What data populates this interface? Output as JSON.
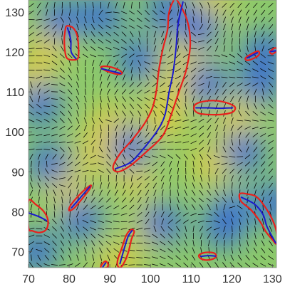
{
  "chart_data": {
    "type": "heatmap",
    "title": "",
    "xlabel": "",
    "ylabel": "",
    "xlim": [
      70,
      131
    ],
    "ylim": [
      66,
      133
    ],
    "x_ticks": [
      70,
      80,
      90,
      100,
      110,
      120,
      130
    ],
    "y_ticks": [
      70,
      80,
      90,
      100,
      110,
      120,
      130
    ],
    "colormap": [
      "#2a2fd0",
      "#3d7fd8",
      "#4cb8b0",
      "#8cc96a",
      "#c8d455",
      "#e6cc3a"
    ],
    "colors": {
      "red_contour": "#e8201c",
      "blue_skeleton": "#1a1acc",
      "director_glyph": "#000000"
    },
    "overlays": "director field line segments; red closed contours; blue centre lines",
    "low_value_spots": [
      [
        73,
        107
      ],
      [
        72,
        70
      ],
      [
        78,
        128
      ],
      [
        88,
        129
      ],
      [
        95,
        96
      ],
      [
        97,
        118
      ],
      [
        112,
        126
      ],
      [
        114,
        112
      ],
      [
        123,
        95
      ],
      [
        127,
        112
      ],
      [
        120,
        80
      ],
      [
        118,
        76
      ],
      [
        83,
        78
      ],
      [
        103,
        77
      ],
      [
        131,
        82
      ],
      [
        75,
        92
      ],
      [
        104,
        130
      ],
      [
        128,
        120
      ]
    ],
    "high_value_spots": [
      [
        96,
        89
      ],
      [
        103,
        103
      ],
      [
        106,
        110
      ],
      [
        109,
        120
      ],
      [
        100,
        76
      ],
      [
        79,
        86
      ],
      [
        115,
        92
      ],
      [
        90,
        102
      ],
      [
        87,
        95
      ],
      [
        71,
        113
      ],
      [
        121,
        103
      ],
      [
        92,
        67
      ],
      [
        115,
        132
      ],
      [
        75,
        122
      ]
    ],
    "regions": [
      {
        "outline": [
          [
            106.5,
            133
          ],
          [
            109,
            128
          ],
          [
            109.8,
            122
          ],
          [
            108.8,
            115.5
          ],
          [
            107,
            110
          ],
          [
            105,
            104
          ],
          [
            103,
            99
          ],
          [
            99,
            95
          ],
          [
            95,
            91.5
          ],
          [
            92,
            90
          ],
          [
            90.8,
            91.2
          ],
          [
            92.5,
            94.5
          ],
          [
            95.5,
            98
          ],
          [
            98.5,
            102
          ],
          [
            100.5,
            106
          ],
          [
            101.5,
            110.5
          ],
          [
            102,
            115
          ],
          [
            103,
            120.5
          ],
          [
            104.2,
            125.5
          ],
          [
            104.5,
            129.5
          ],
          [
            105.5,
            132.5
          ]
        ],
        "centerline": [
          [
            108,
            132.5
          ],
          [
            106.8,
            127
          ],
          [
            106.3,
            121
          ],
          [
            105.6,
            115
          ],
          [
            104.6,
            110
          ],
          [
            103.5,
            104
          ],
          [
            101.5,
            100
          ],
          [
            97.8,
            95.2
          ],
          [
            95,
            92.3
          ],
          [
            91.5,
            90.8
          ]
        ]
      },
      {
        "outline": [
          [
            79.4,
            126.5
          ],
          [
            81,
            126
          ],
          [
            82,
            124
          ],
          [
            82.3,
            121
          ],
          [
            82.2,
            118.5
          ],
          [
            81,
            118
          ],
          [
            79.5,
            118.4
          ],
          [
            79,
            120
          ],
          [
            78.8,
            123
          ],
          [
            79,
            125.2
          ]
        ],
        "centerline": [
          [
            79.6,
            126
          ],
          [
            80.4,
            123
          ],
          [
            80.5,
            120
          ],
          [
            81.7,
            118.3
          ]
        ]
      },
      {
        "outline": [
          [
            87.8,
            116.2
          ],
          [
            89,
            116.4
          ],
          [
            91,
            116
          ],
          [
            92.5,
            115.3
          ],
          [
            93,
            114.6
          ],
          [
            92,
            114.4
          ],
          [
            90.3,
            114.8
          ],
          [
            88.6,
            115.5
          ]
        ],
        "centerline": [
          [
            88,
            115.8
          ],
          [
            90,
            115.3
          ],
          [
            92.7,
            114.6
          ]
        ]
      },
      {
        "outline": [
          [
            111,
            106.8
          ],
          [
            113,
            107.6
          ],
          [
            116,
            107.8
          ],
          [
            119,
            107.2
          ],
          [
            120.8,
            106.2
          ],
          [
            120.3,
            105
          ],
          [
            118,
            104.4
          ],
          [
            115,
            104.3
          ],
          [
            112,
            104.6
          ],
          [
            110.8,
            105.5
          ]
        ],
        "centerline": [
          [
            111.2,
            106
          ],
          [
            114,
            106
          ],
          [
            117,
            105.9
          ],
          [
            120.2,
            106
          ]
        ]
      },
      {
        "outline": [
          [
            123.4,
            118.5
          ],
          [
            125,
            119.6
          ],
          [
            126.5,
            120.2
          ],
          [
            126.7,
            119.3
          ],
          [
            125.4,
            118.4
          ],
          [
            123.8,
            117.9
          ]
        ],
        "centerline": [
          [
            123.8,
            118.5
          ],
          [
            126.3,
            119.8
          ]
        ]
      },
      {
        "outline": [
          [
            129.4,
            120
          ],
          [
            130.6,
            121
          ],
          [
            131.2,
            120.4
          ],
          [
            130,
            119.5
          ]
        ],
        "centerline": [
          [
            129.6,
            120.1
          ],
          [
            131,
            120.3
          ]
        ]
      },
      {
        "outline": [
          [
            80.3,
            81.5
          ],
          [
            82.3,
            84
          ],
          [
            84.4,
            86
          ],
          [
            85.4,
            86.6
          ],
          [
            84.8,
            85.3
          ],
          [
            83,
            83
          ],
          [
            81.1,
            80.8
          ],
          [
            80,
            80.3
          ]
        ],
        "centerline": [
          [
            80.6,
            81
          ],
          [
            83,
            83.8
          ],
          [
            85.1,
            86.3
          ]
        ]
      },
      {
        "outline": [
          [
            70,
            82.7
          ],
          [
            71.8,
            81.8
          ],
          [
            73.8,
            80
          ],
          [
            74.8,
            77.8
          ],
          [
            74.4,
            75.6
          ],
          [
            72.8,
            74.8
          ],
          [
            71,
            75.2
          ],
          [
            70,
            76
          ]
        ],
        "centerline": [
          [
            70,
            79.7
          ],
          [
            72.5,
            78.8
          ],
          [
            74.4,
            77.8
          ]
        ]
      },
      {
        "outline": [
          [
            122,
            84.5
          ],
          [
            124,
            84.4
          ],
          [
            126,
            83.8
          ],
          [
            128,
            81.5
          ],
          [
            130,
            78
          ],
          [
            131,
            75
          ],
          [
            131,
            72
          ],
          [
            130,
            73
          ],
          [
            128.4,
            75
          ],
          [
            127,
            77.5
          ],
          [
            124.8,
            80.4
          ],
          [
            122.3,
            82.6
          ]
        ],
        "centerline": [
          [
            122.4,
            83.6
          ],
          [
            125.6,
            81.9
          ],
          [
            127.7,
            79.3
          ],
          [
            128.7,
            76.2
          ],
          [
            130.8,
            72.2
          ]
        ]
      },
      {
        "outline": [
          [
            92,
            68.2
          ],
          [
            93,
            71
          ],
          [
            94,
            74
          ],
          [
            95.2,
            75.5
          ],
          [
            96,
            75
          ],
          [
            95.3,
            73
          ],
          [
            94.6,
            70
          ],
          [
            93.7,
            67.6
          ],
          [
            92.6,
            66
          ],
          [
            91.9,
            66.6
          ]
        ],
        "centerline": [
          [
            92.5,
            67
          ],
          [
            93.5,
            70.6
          ],
          [
            94.5,
            73.8
          ],
          [
            95.5,
            75.3
          ]
        ]
      },
      {
        "outline": [
          [
            87.8,
            66
          ],
          [
            88.2,
            67
          ],
          [
            89,
            67.6
          ],
          [
            89.6,
            66.8
          ],
          [
            89.2,
            66
          ]
        ],
        "centerline": [
          [
            88.3,
            66.2
          ],
          [
            89,
            67.2
          ]
        ]
      },
      {
        "outline": [
          [
            112,
            69.2
          ],
          [
            113.5,
            69.8
          ],
          [
            115.5,
            69.7
          ],
          [
            116.2,
            69
          ],
          [
            115.5,
            68.2
          ],
          [
            113.6,
            67.9
          ],
          [
            112.2,
            68.4
          ]
        ],
        "centerline": [
          [
            112.4,
            68.8
          ],
          [
            114.2,
            69
          ],
          [
            116,
            68.9
          ]
        ]
      }
    ]
  }
}
